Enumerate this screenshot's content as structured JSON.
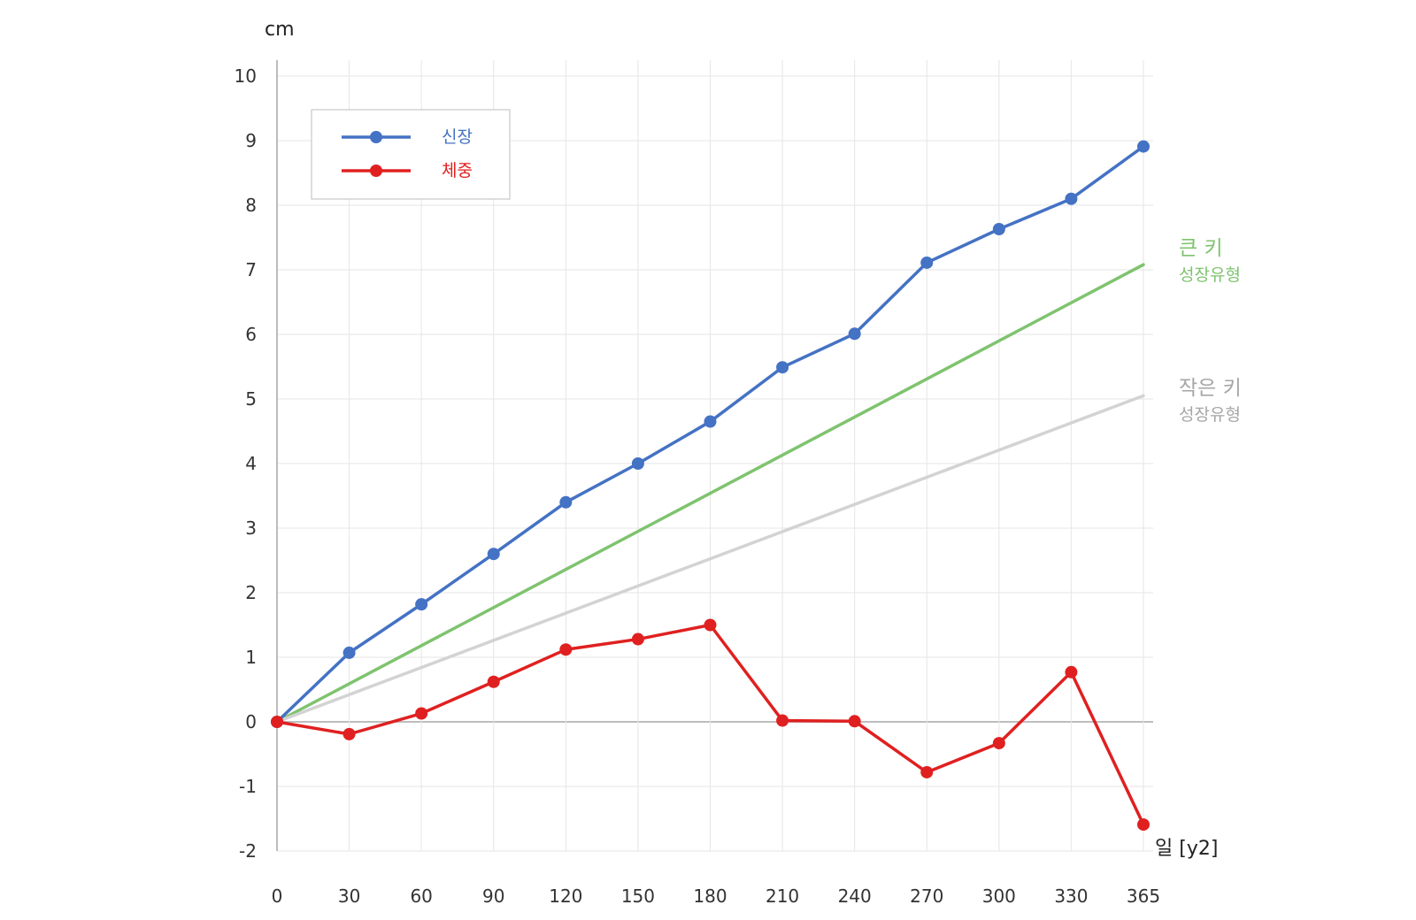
{
  "chart_data": {
    "type": "line",
    "ylabel": "cm",
    "xlabel": "일 [y2]",
    "x": [
      0,
      30,
      60,
      90,
      120,
      150,
      180,
      210,
      240,
      270,
      300,
      330,
      365
    ],
    "ylim": [
      -2,
      10
    ],
    "yticks": [
      -2,
      -1,
      0,
      1,
      2,
      3,
      4,
      5,
      6,
      7,
      8,
      9,
      10
    ],
    "grid": true,
    "legend_position": "top-left",
    "series": [
      {
        "name": "신장",
        "color": "#4472c4",
        "marker": "circle",
        "values": [
          0,
          1.07,
          1.82,
          2.6,
          3.4,
          4.0,
          4.65,
          5.49,
          6.01,
          7.11,
          7.63,
          8.1,
          8.91
        ]
      },
      {
        "name": "체중",
        "color": "#e02020",
        "marker": "circle",
        "values": [
          0,
          -0.19,
          0.13,
          0.62,
          1.12,
          1.28,
          1.5,
          0.02,
          0.01,
          -0.78,
          -0.33,
          0.77,
          -1.59
        ]
      }
    ],
    "reference_lines": [
      {
        "title": "큰 키",
        "subtitle": "성장유형",
        "color": "#7fc36f",
        "points": [
          [
            0,
            0
          ],
          [
            365,
            7.08
          ]
        ]
      },
      {
        "title": "작은 키",
        "subtitle": "성장유형",
        "color": "#d3d3d3",
        "text_color": "#a6a6a6",
        "points": [
          [
            0,
            0
          ],
          [
            365,
            5.05
          ]
        ]
      }
    ]
  }
}
